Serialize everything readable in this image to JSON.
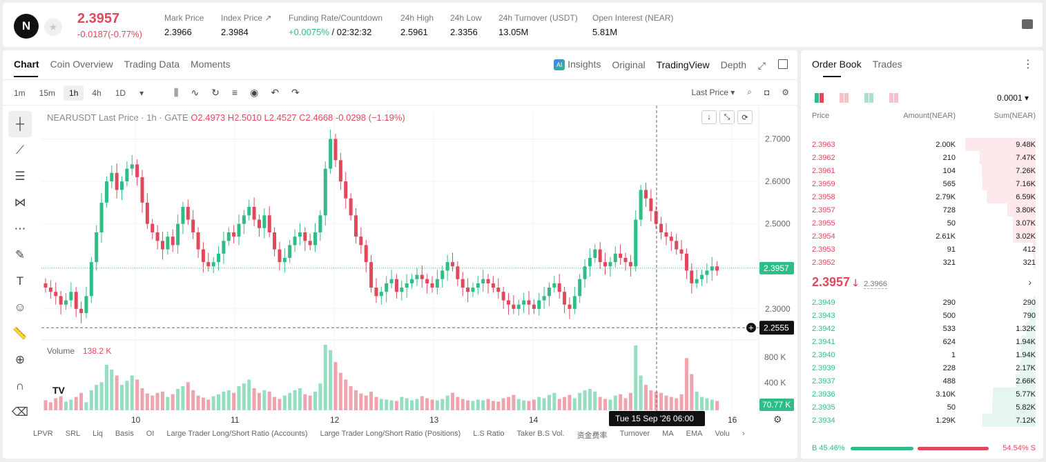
{
  "header": {
    "last_price": "2.3957",
    "change": "-0.0187(-0.77%)",
    "stats": [
      {
        "label": "Mark Price",
        "value": "2.3966"
      },
      {
        "label": "Index Price ↗",
        "value": "2.3984"
      },
      {
        "label": "Funding Rate/Countdown",
        "value_green": "+0.0075%",
        "value": " / 02:32:32"
      },
      {
        "label": "24h High",
        "value": "2.5961"
      },
      {
        "label": "24h Low",
        "value": "2.3356"
      },
      {
        "label": "24h Turnover (USDT)",
        "value": "13.05M"
      },
      {
        "label": "Open Interest (NEAR)",
        "value": "5.81M"
      }
    ]
  },
  "chart_panel": {
    "tabs": [
      "Chart",
      "Coin Overview",
      "Trading Data",
      "Moments"
    ],
    "view_tabs": [
      "Insights",
      "Original",
      "TradingView",
      "Depth"
    ],
    "intervals": [
      "1m",
      "15m",
      "1h",
      "4h",
      "1D"
    ],
    "price_type": "Last Price",
    "legend": {
      "symbol": "NEARUSDT Last Price · 1h · GATE",
      "ohlc": "O2.4973  H2.5010  L2.4527  C2.4668  -0.0298 (−1.19%)"
    },
    "volume_label": "Volume",
    "volume_value": "138.2 K",
    "indicators": [
      "LPVR",
      "SRL",
      "Liq",
      "Basis",
      "OI",
      "Large Trader Long/Short Ratio (Accounts)",
      "Large Trader Long/Short Ratio (Positions)",
      "L.S Ratio",
      "Taker B.S Vol.",
      "资金费率",
      "Turnover",
      "MA",
      "EMA",
      "Volu"
    ],
    "crosshair_time": "Tue 15 Sep '26   06:00"
  },
  "chart_data": {
    "type": "candlestick",
    "title": "NEARUSDT Last Price · 1h · GATE",
    "y_ticks": [
      "2.7000",
      "2.6000",
      "2.5000",
      "2.3000"
    ],
    "ylim": [
      2.23,
      2.73
    ],
    "x_ticks": [
      "10",
      "11",
      "12",
      "13",
      "14",
      "16"
    ],
    "last_price_label": "2.3957",
    "crosshair_price_label": "2.2555",
    "volume_ticks": [
      "800 K",
      "400 K"
    ],
    "volume_last_label": "70.77 K",
    "close": [
      2.35,
      2.34,
      2.33,
      2.31,
      2.32,
      2.34,
      2.3,
      2.29,
      2.33,
      2.41,
      2.48,
      2.55,
      2.6,
      2.62,
      2.58,
      2.6,
      2.63,
      2.64,
      2.61,
      2.55,
      2.5,
      2.48,
      2.46,
      2.44,
      2.47,
      2.45,
      2.5,
      2.54,
      2.51,
      2.48,
      2.44,
      2.41,
      2.4,
      2.41,
      2.43,
      2.46,
      2.48,
      2.47,
      2.5,
      2.52,
      2.54,
      2.51,
      2.49,
      2.52,
      2.48,
      2.44,
      2.41,
      2.42,
      2.45,
      2.47,
      2.48,
      2.46,
      2.45,
      2.48,
      2.52,
      2.63,
      2.7,
      2.65,
      2.6,
      2.56,
      2.52,
      2.47,
      2.45,
      2.41,
      2.35,
      2.33,
      2.34,
      2.36,
      2.37,
      2.34,
      2.35,
      2.36,
      2.37,
      2.38,
      2.37,
      2.36,
      2.35,
      2.37,
      2.39,
      2.41,
      2.4,
      2.37,
      2.35,
      2.34,
      2.35,
      2.36,
      2.37,
      2.36,
      2.35,
      2.34,
      2.32,
      2.31,
      2.3,
      2.31,
      2.32,
      2.31,
      2.3,
      2.32,
      2.33,
      2.35,
      2.36,
      2.34,
      2.31,
      2.3,
      2.33,
      2.37,
      2.4,
      2.42,
      2.44,
      2.41,
      2.4,
      2.41,
      2.43,
      2.42,
      2.41,
      2.4,
      2.51,
      2.58,
      2.56,
      2.53,
      2.5,
      2.48,
      2.47,
      2.46,
      2.44,
      2.43,
      2.39,
      2.36,
      2.37,
      2.38,
      2.39,
      2.4,
      2.39
    ],
    "open": [
      2.36,
      2.35,
      2.34,
      2.33,
      2.31,
      2.32,
      2.34,
      2.3,
      2.29,
      2.33,
      2.41,
      2.48,
      2.55,
      2.6,
      2.62,
      2.58,
      2.6,
      2.63,
      2.64,
      2.61,
      2.55,
      2.5,
      2.48,
      2.46,
      2.44,
      2.47,
      2.45,
      2.5,
      2.54,
      2.51,
      2.48,
      2.44,
      2.41,
      2.4,
      2.41,
      2.43,
      2.46,
      2.48,
      2.47,
      2.5,
      2.52,
      2.54,
      2.51,
      2.49,
      2.52,
      2.48,
      2.44,
      2.41,
      2.42,
      2.45,
      2.47,
      2.48,
      2.46,
      2.45,
      2.48,
      2.52,
      2.63,
      2.7,
      2.65,
      2.6,
      2.56,
      2.52,
      2.47,
      2.45,
      2.41,
      2.35,
      2.33,
      2.34,
      2.36,
      2.37,
      2.34,
      2.35,
      2.36,
      2.37,
      2.38,
      2.37,
      2.36,
      2.35,
      2.37,
      2.39,
      2.41,
      2.4,
      2.37,
      2.35,
      2.34,
      2.35,
      2.36,
      2.37,
      2.36,
      2.35,
      2.34,
      2.32,
      2.31,
      2.3,
      2.31,
      2.32,
      2.31,
      2.3,
      2.32,
      2.33,
      2.35,
      2.36,
      2.34,
      2.31,
      2.3,
      2.33,
      2.37,
      2.4,
      2.42,
      2.44,
      2.41,
      2.4,
      2.41,
      2.43,
      2.42,
      2.41,
      2.4,
      2.51,
      2.58,
      2.56,
      2.53,
      2.5,
      2.48,
      2.47,
      2.46,
      2.44,
      2.43,
      2.39,
      2.36,
      2.37,
      2.38,
      2.39,
      2.4
    ],
    "volume": [
      150,
      120,
      180,
      210,
      130,
      160,
      200,
      260,
      120,
      300,
      380,
      420,
      680,
      610,
      520,
      380,
      440,
      520,
      460,
      330,
      250,
      220,
      260,
      280,
      200,
      240,
      320,
      360,
      420,
      300,
      220,
      190,
      160,
      210,
      240,
      280,
      300,
      260,
      360,
      400,
      460,
      330,
      260,
      300,
      280,
      200,
      170,
      220,
      260,
      300,
      330,
      240,
      220,
      280,
      400,
      980,
      900,
      720,
      560,
      460,
      360,
      300,
      250,
      220,
      280,
      200,
      170,
      160,
      150,
      140,
      200,
      180,
      150,
      170,
      210,
      180,
      160,
      150,
      170,
      220,
      260,
      200,
      170,
      150,
      140,
      160,
      150,
      170,
      140,
      130,
      180,
      200,
      230,
      170,
      150,
      140,
      160,
      200,
      180,
      230,
      260,
      170,
      200,
      230,
      180,
      260,
      300,
      320,
      280,
      200,
      170,
      160,
      220,
      240,
      180,
      260,
      970,
      520,
      380,
      300,
      280,
      260,
      220,
      200,
      180,
      240,
      780,
      540,
      280,
      200,
      180,
      160,
      140
    ]
  },
  "order_book": {
    "tabs": [
      "Order Book",
      "Trades"
    ],
    "precision": "0.0001",
    "headers": [
      "Price",
      "Amount(NEAR)",
      "Sum(NEAR)"
    ],
    "asks": [
      {
        "price": "2.3963",
        "amount": "2.00K",
        "sum": "9.48K",
        "depth": 0.948
      },
      {
        "price": "2.3962",
        "amount": "210",
        "sum": "7.47K",
        "depth": 0.747
      },
      {
        "price": "2.3961",
        "amount": "104",
        "sum": "7.26K",
        "depth": 0.726
      },
      {
        "price": "2.3959",
        "amount": "565",
        "sum": "7.16K",
        "depth": 0.716
      },
      {
        "price": "2.3958",
        "amount": "2.79K",
        "sum": "6.59K",
        "depth": 0.659
      },
      {
        "price": "2.3957",
        "amount": "728",
        "sum": "3.80K",
        "depth": 0.38
      },
      {
        "price": "2.3955",
        "amount": "50",
        "sum": "3.07K",
        "depth": 0.307
      },
      {
        "price": "2.3954",
        "amount": "2.61K",
        "sum": "3.02K",
        "depth": 0.302
      },
      {
        "price": "2.3953",
        "amount": "91",
        "sum": "412",
        "depth": 0.041
      },
      {
        "price": "2.3952",
        "amount": "321",
        "sum": "321",
        "depth": 0.032
      }
    ],
    "last_price": "2.3957",
    "last_arrow": "🡓",
    "mark_price": "2.3966",
    "bids": [
      {
        "price": "2.3949",
        "amount": "290",
        "sum": "290",
        "depth": 0.029
      },
      {
        "price": "2.3943",
        "amount": "500",
        "sum": "790",
        "depth": 0.079
      },
      {
        "price": "2.3942",
        "amount": "533",
        "sum": "1.32K",
        "depth": 0.132
      },
      {
        "price": "2.3941",
        "amount": "624",
        "sum": "1.94K",
        "depth": 0.194
      },
      {
        "price": "2.3940",
        "amount": "1",
        "sum": "1.94K",
        "depth": 0.194
      },
      {
        "price": "2.3939",
        "amount": "228",
        "sum": "2.17K",
        "depth": 0.217
      },
      {
        "price": "2.3937",
        "amount": "488",
        "sum": "2.66K",
        "depth": 0.266
      },
      {
        "price": "2.3936",
        "amount": "3.10K",
        "sum": "5.77K",
        "depth": 0.577
      },
      {
        "price": "2.3935",
        "amount": "50",
        "sum": "5.82K",
        "depth": 0.582
      },
      {
        "price": "2.3934",
        "amount": "1.29K",
        "sum": "7.12K",
        "depth": 0.712
      }
    ],
    "buy_ratio": "B 45.46%",
    "sell_ratio": "54.54% S",
    "buy_fraction": 0.4546
  },
  "colors": {
    "up": "#2ebd85",
    "down": "#e0485b"
  }
}
